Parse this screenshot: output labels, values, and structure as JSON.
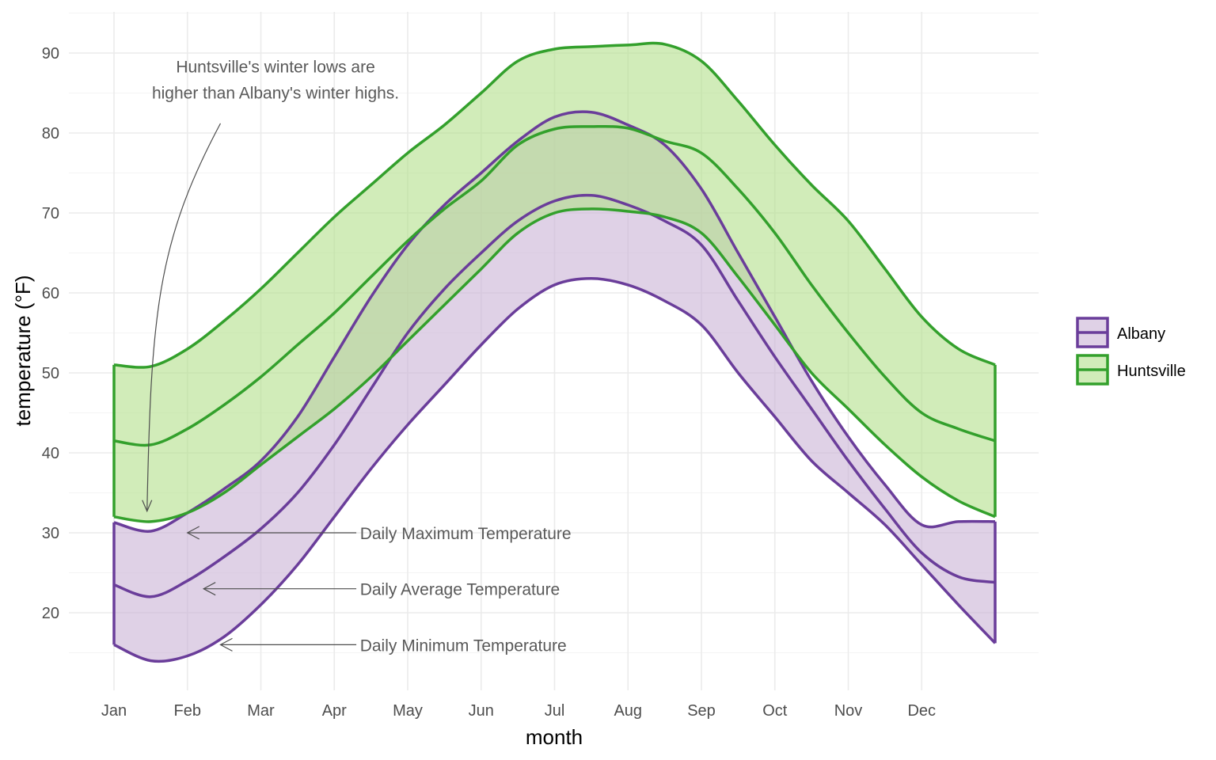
{
  "chart_data": {
    "type": "area",
    "xlabel": "month",
    "ylabel": "temperature (°F)",
    "xlim": [
      1,
      13
    ],
    "ylim": [
      11,
      93
    ],
    "grid": true,
    "legend_position": "right",
    "x_ticks": [
      {
        "value": 1,
        "label": "Jan"
      },
      {
        "value": 2,
        "label": "Feb"
      },
      {
        "value": 3,
        "label": "Mar"
      },
      {
        "value": 4,
        "label": "Apr"
      },
      {
        "value": 5,
        "label": "May"
      },
      {
        "value": 6,
        "label": "Jun"
      },
      {
        "value": 7,
        "label": "Jul"
      },
      {
        "value": 8,
        "label": "Aug"
      },
      {
        "value": 9,
        "label": "Sep"
      },
      {
        "value": 10,
        "label": "Oct"
      },
      {
        "value": 11,
        "label": "Nov"
      },
      {
        "value": 12,
        "label": "Dec"
      }
    ],
    "y_ticks": [
      20,
      30,
      40,
      50,
      60,
      70,
      80,
      90
    ],
    "x": [
      1.0,
      1.5,
      2.0,
      2.5,
      3.0,
      3.5,
      4.0,
      4.5,
      5.0,
      5.5,
      6.0,
      6.5,
      7.0,
      7.5,
      8.0,
      8.5,
      9.0,
      9.5,
      10.0,
      10.5,
      11.0,
      11.5,
      12.0,
      12.5,
      13.0
    ],
    "series": [
      {
        "name": "Albany",
        "color": "#6a3d9a",
        "fill": "#cab2d6",
        "max": [
          31.3,
          30.2,
          32.5,
          35.5,
          39.0,
          44.5,
          52.0,
          59.5,
          66.0,
          71.0,
          75.0,
          79.0,
          82.0,
          82.6,
          81.0,
          78.5,
          73.0,
          65.0,
          57.0,
          49.0,
          42.0,
          36.0,
          31.0,
          31.4,
          31.4
        ],
        "avg": [
          23.5,
          22.0,
          24.0,
          27.0,
          30.5,
          35.0,
          41.0,
          48.0,
          55.0,
          60.5,
          65.0,
          69.0,
          71.5,
          72.2,
          71.0,
          69.0,
          66.0,
          59.0,
          52.0,
          45.5,
          39.0,
          33.0,
          27.5,
          24.5,
          23.8
        ],
        "min": [
          16.0,
          14.0,
          14.6,
          17.0,
          21.0,
          26.0,
          32.0,
          38.0,
          43.5,
          48.5,
          53.5,
          58.0,
          61.0,
          61.8,
          61.0,
          59.0,
          56.0,
          50.0,
          44.5,
          39.0,
          35.0,
          31.0,
          26.0,
          21.0,
          16.2
        ]
      },
      {
        "name": "Huntsville",
        "color": "#33a02c",
        "fill": "#b2df8a",
        "max": [
          51.0,
          50.8,
          53.0,
          56.5,
          60.5,
          65.0,
          69.5,
          73.5,
          77.5,
          81.0,
          85.0,
          89.0,
          90.5,
          90.8,
          91.0,
          91.1,
          89.0,
          84.0,
          78.5,
          73.5,
          69.0,
          63.0,
          57.0,
          53.0,
          51.0
        ],
        "avg": [
          41.5,
          41.0,
          43.0,
          46.0,
          49.5,
          53.5,
          57.5,
          62.0,
          66.5,
          70.5,
          74.0,
          78.5,
          80.5,
          80.8,
          80.6,
          79.0,
          77.5,
          73.0,
          67.5,
          61.0,
          55.0,
          49.5,
          45.0,
          43.0,
          41.5
        ],
        "min": [
          32.0,
          31.4,
          32.5,
          35.0,
          38.5,
          42.0,
          45.5,
          49.5,
          54.0,
          58.5,
          63.0,
          67.5,
          70.0,
          70.5,
          70.2,
          69.5,
          67.5,
          62.0,
          56.0,
          50.0,
          45.5,
          41.0,
          37.0,
          34.0,
          32.0
        ]
      }
    ],
    "annotations": [
      {
        "lines": [
          "Huntsville's winter lows are",
          "higher than Albany's winter highs."
        ],
        "text_at": [
          3.2,
          85.0
        ],
        "arrow_from": [
          2.45,
          81.2
        ],
        "arrow_to": [
          1.45,
          32.7
        ]
      },
      {
        "lines": [
          "Daily Maximum Temperature"
        ],
        "text_at": [
          4.35,
          30.0
        ],
        "arrow_from": [
          4.3,
          30.0
        ],
        "arrow_to": [
          2.0,
          30.0
        ]
      },
      {
        "lines": [
          "Daily Average Temperature"
        ],
        "text_at": [
          4.35,
          23.0
        ],
        "arrow_from": [
          4.3,
          23.0
        ],
        "arrow_to": [
          2.22,
          23.0
        ]
      },
      {
        "lines": [
          "Daily Minimum Temperature"
        ],
        "text_at": [
          4.35,
          16.0
        ],
        "arrow_from": [
          4.3,
          16.0
        ],
        "arrow_to": [
          2.45,
          16.0
        ]
      }
    ]
  }
}
